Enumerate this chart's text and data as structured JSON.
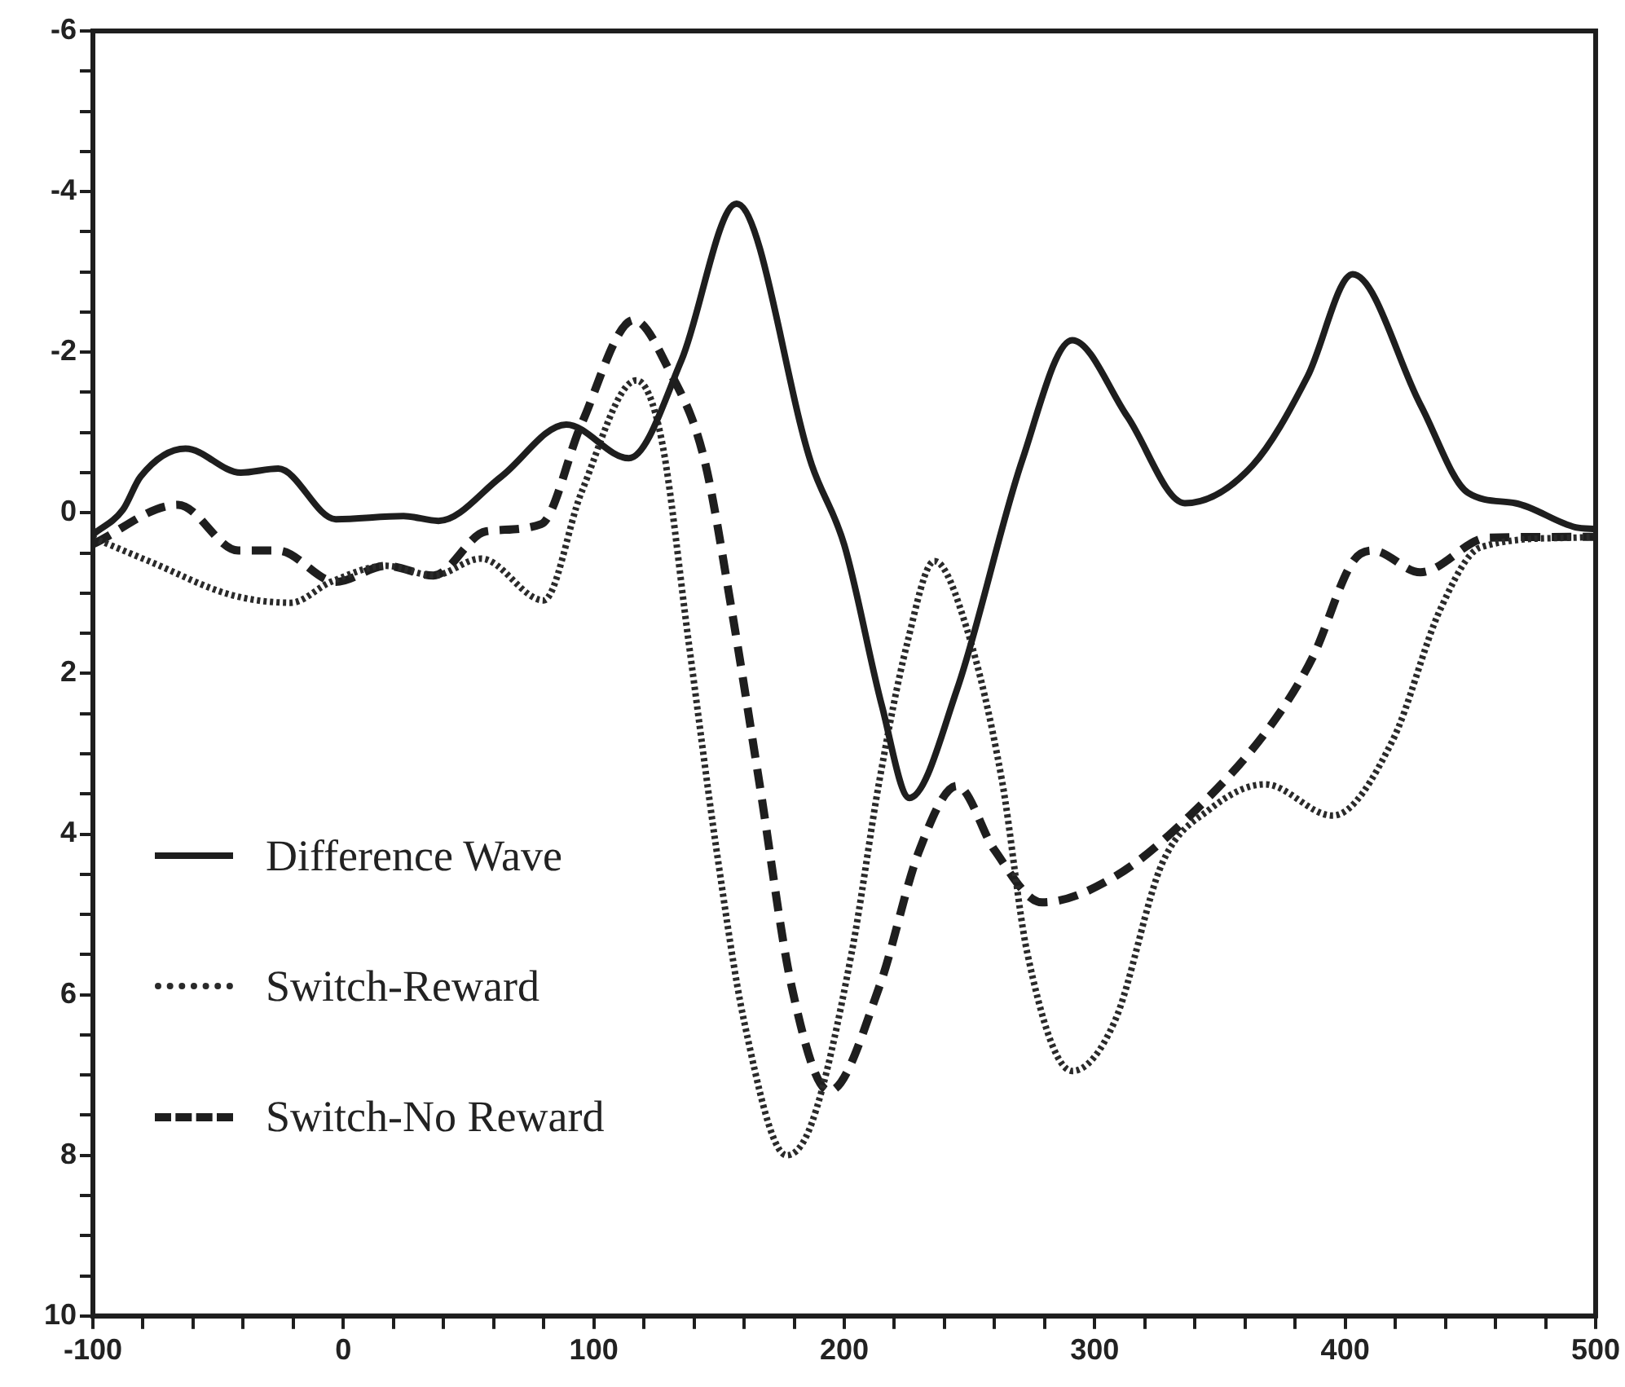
{
  "chart_data": {
    "type": "line",
    "legend": "bottom left",
    "grid": false,
    "marker": "none",
    "xlim": [
      -100,
      500
    ],
    "xticks": [
      -100,
      {
        "value": -80,
        "label": null
      },
      {
        "value": -60,
        "label": null
      },
      {
        "value": -40,
        "label": null
      },
      {
        "value": -20,
        "label": null
      },
      0,
      {
        "value": 20,
        "label": null
      },
      {
        "value": 40,
        "label": null
      },
      {
        "value": 60,
        "label": null
      },
      {
        "value": 80,
        "label": null
      },
      100,
      {
        "value": 120,
        "label": null
      },
      {
        "value": 140,
        "label": null
      },
      {
        "value": 160,
        "label": null
      },
      {
        "value": 180,
        "label": null
      },
      200,
      {
        "value": 220,
        "label": null
      },
      {
        "value": 240,
        "label": null
      },
      {
        "value": 260,
        "label": null
      },
      {
        "value": 280,
        "label": null
      },
      300,
      {
        "value": 320,
        "label": null
      },
      {
        "value": 340,
        "label": null
      },
      {
        "value": 360,
        "label": null
      },
      {
        "value": 380,
        "label": null
      },
      400,
      {
        "value": 420,
        "label": null
      },
      {
        "value": 440,
        "label": null
      },
      {
        "value": 460,
        "label": null
      },
      {
        "value": 480,
        "label": null
      },
      500
    ],
    "ylim": [
      10,
      -6
    ],
    "yticks": [
      -6,
      {
        "value": -5.5,
        "label": null
      },
      {
        "value": -5,
        "label": null
      },
      {
        "value": -4.5,
        "label": null
      },
      -4,
      {
        "value": -3.5,
        "label": null
      },
      {
        "value": -3,
        "label": null
      },
      {
        "value": -2.5,
        "label": null
      },
      -2,
      {
        "value": -1.5,
        "label": null
      },
      {
        "value": -1,
        "label": null
      },
      {
        "value": -0.5,
        "label": null
      },
      0,
      {
        "value": 0.5,
        "label": null
      },
      {
        "value": 1,
        "label": null
      },
      {
        "value": 1.5,
        "label": null
      },
      2,
      {
        "value": 2.5,
        "label": null
      },
      {
        "value": 3,
        "label": null
      },
      {
        "value": 3.5,
        "label": null
      },
      4,
      {
        "value": 4.5,
        "label": null
      },
      {
        "value": 5,
        "label": null
      },
      {
        "value": 5.5,
        "label": null
      },
      6,
      {
        "value": 6.5,
        "label": null
      },
      {
        "value": 7,
        "label": null
      },
      {
        "value": 7.5,
        "label": null
      },
      8,
      {
        "value": 8.5,
        "label": null
      },
      {
        "value": 9,
        "label": null
      },
      {
        "value": 9.5,
        "label": null
      },
      10
    ],
    "series": [
      {
        "name": "Difference Wave",
        "color": "#1e1e1e",
        "line_style": "solid",
        "x": [
          -100,
          -88,
          -81,
          -63,
          -41,
          -26,
          -3,
          24,
          38,
          63,
          89,
          114,
          135,
          157,
          187,
          200,
          215,
          226,
          245,
          271,
          291,
          313,
          336,
          363,
          385,
          403,
          430,
          449,
          468,
          492,
          500
        ],
        "values": [
          0.27,
          -0.04,
          -0.45,
          -0.8,
          -0.5,
          -0.55,
          0.08,
          0.04,
          0.1,
          -0.45,
          -1.1,
          -0.68,
          -1.9,
          -3.85,
          -0.6,
          0.4,
          2.4,
          3.55,
          2.2,
          -0.65,
          -2.15,
          -1.2,
          -0.12,
          -0.59,
          -1.7,
          -2.97,
          -1.35,
          -0.25,
          -0.12,
          0.18,
          0.2
        ]
      },
      {
        "name": "Switch-Reward",
        "color": "#2a2a2a",
        "line_style": "dotted",
        "x": [
          -100,
          -77,
          -45,
          -21,
          -5,
          17,
          36,
          55,
          80,
          95,
          117,
          127,
          138,
          149,
          160,
          177,
          187,
          203,
          214,
          225,
          236,
          249,
          263,
          273,
          291,
          308,
          327,
          346,
          368,
          395,
          419,
          438,
          454,
          490,
          500
        ],
        "values": [
          0.31,
          0.61,
          1.02,
          1.12,
          0.86,
          0.66,
          0.78,
          0.57,
          1.09,
          -0.25,
          -1.65,
          -0.92,
          1.64,
          4.2,
          6.33,
          8.0,
          7.6,
          5.47,
          3.34,
          1.64,
          0.6,
          1.45,
          3.34,
          5.47,
          6.95,
          6.33,
          4.36,
          3.69,
          3.38,
          3.77,
          2.83,
          1.2,
          0.43,
          0.31,
          0.3
        ]
      },
      {
        "name": "Switch-No Reward",
        "color": "#1e1e1e",
        "line_style": "dashed",
        "x": [
          -100,
          -66,
          -42,
          -26,
          -3,
          17,
          36,
          57,
          79,
          95,
          116,
          130,
          144,
          155,
          166,
          179,
          194,
          214,
          230,
          245,
          260,
          279,
          308,
          338,
          370,
          387,
          403,
          411,
          430,
          457,
          490,
          500
        ],
        "values": [
          0.39,
          -0.1,
          0.47,
          0.47,
          0.86,
          0.66,
          0.78,
          0.23,
          0.14,
          -1.1,
          -2.4,
          -1.78,
          -0.68,
          1.2,
          3.34,
          5.9,
          7.2,
          5.9,
          4.2,
          3.4,
          4.2,
          4.85,
          4.53,
          3.77,
          2.66,
          1.8,
          0.61,
          0.47,
          0.74,
          0.31,
          0.3,
          0.3
        ]
      }
    ]
  }
}
